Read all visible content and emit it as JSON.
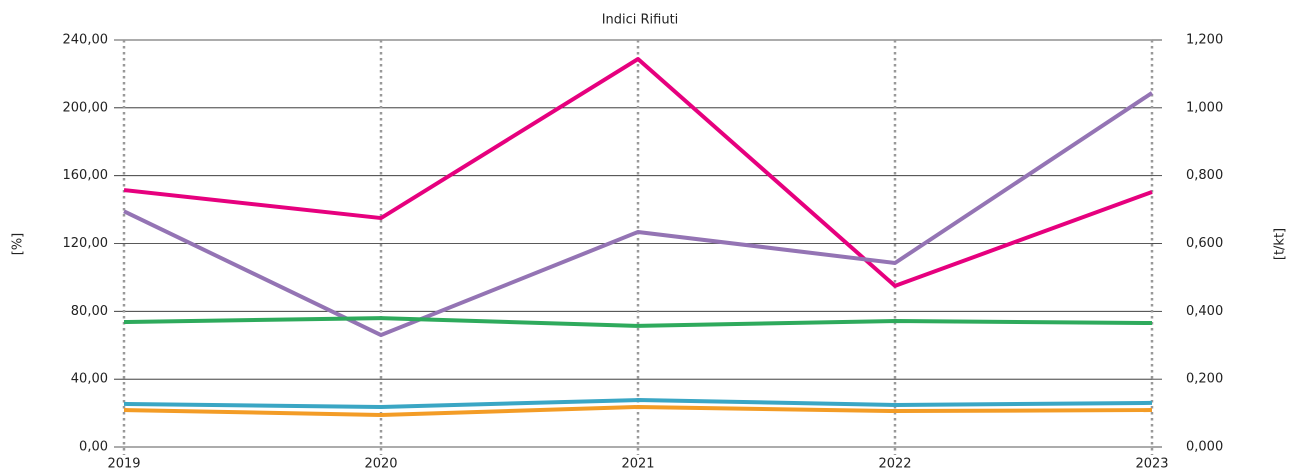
{
  "chart_data": {
    "type": "line",
    "title": "Indici Rifiuti",
    "y_label": "[%]",
    "y2_label": "[t/kt]",
    "categories": [
      "2019",
      "2020",
      "2021",
      "2022",
      "2023"
    ],
    "series": [
      {
        "color": "#e6007e",
        "values": [
          151.5,
          135,
          228.8,
          95,
          150.4
        ]
      },
      {
        "color": "#9474b4",
        "values": [
          139,
          66,
          126.8,
          108.5,
          208.8
        ]
      },
      {
        "color": "#2eaa5c",
        "values": [
          73.7,
          76,
          71.4,
          74.3,
          73.1
        ]
      },
      {
        "color": "#3aa6c4",
        "values": [
          25.4,
          23.6,
          27.7,
          24.8,
          26
        ]
      },
      {
        "color": "#f39c26",
        "values": [
          21.8,
          18.9,
          23.6,
          21.2,
          21.8
        ]
      }
    ],
    "ylim": [
      0,
      240
    ],
    "yticks": [
      {
        "value": 0,
        "label": "0,00"
      },
      {
        "value": 40,
        "label": "40,00"
      },
      {
        "value": 80,
        "label": "80,00"
      },
      {
        "value": 120,
        "label": "120,00"
      },
      {
        "value": 160,
        "label": "160,00"
      },
      {
        "value": 200,
        "label": "200,00"
      },
      {
        "value": 240,
        "label": "240,00"
      }
    ],
    "y2lim": [
      0,
      1.2
    ],
    "y2ticks": [
      {
        "value": 0,
        "label": "0,000"
      },
      {
        "value": 0.2,
        "label": "0,200"
      },
      {
        "value": 0.4,
        "label": "0,400"
      },
      {
        "value": 0.6,
        "label": "0,600"
      },
      {
        "value": 0.8,
        "label": "0,800"
      },
      {
        "value": 1,
        "label": "1,000"
      },
      {
        "value": 1.2,
        "label": "1,200"
      }
    ],
    "grid": true
  }
}
